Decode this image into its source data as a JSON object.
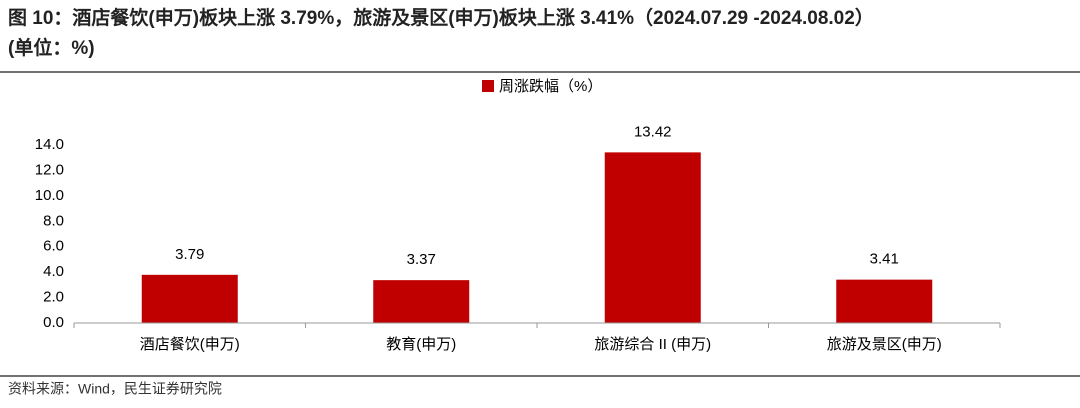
{
  "chart_data": {
    "type": "bar",
    "title": "图 10：酒店餐饮(申万)板块上涨 3.79%，旅游及景区(申万)板块上涨 3.41%（2024.07.29 -2024.08.02）",
    "subtitle": "(单位：%)",
    "categories": [
      "酒店餐饮(申万)",
      "教育(申万)",
      "旅游综合 II (申万)",
      "旅游及景区(申万)"
    ],
    "series": [
      {
        "name": "周涨跌幅（%）",
        "color": "#c00000",
        "values": [
          3.79,
          3.37,
          13.42,
          3.41
        ]
      }
    ],
    "ylim": [
      0,
      14
    ],
    "yticks": [
      {
        "value": 0,
        "label": "0.0"
      },
      {
        "value": 2,
        "label": "2.0"
      },
      {
        "value": 4,
        "label": "4.0"
      },
      {
        "value": 6,
        "label": "6.0"
      },
      {
        "value": 8,
        "label": "8.0"
      },
      {
        "value": 10,
        "label": "10.0"
      },
      {
        "value": 12,
        "label": "12.0"
      },
      {
        "value": 14,
        "label": "14.0"
      }
    ],
    "legend": "top",
    "source": "资料来源：Wind，民生证券研究院"
  }
}
